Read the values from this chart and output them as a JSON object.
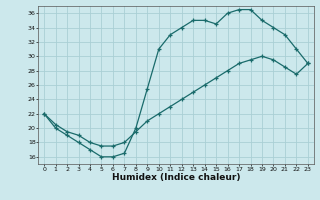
{
  "xlabel": "Humidex (Indice chaleur)",
  "background_color": "#cce8ec",
  "grid_color": "#aacfd5",
  "line_color": "#1a6b6b",
  "xlim": [
    -0.5,
    23.5
  ],
  "ylim": [
    15.0,
    37.0
  ],
  "yticks": [
    16,
    18,
    20,
    22,
    24,
    26,
    28,
    30,
    32,
    34,
    36
  ],
  "xticks": [
    0,
    1,
    2,
    3,
    4,
    5,
    6,
    7,
    8,
    9,
    10,
    11,
    12,
    13,
    14,
    15,
    16,
    17,
    18,
    19,
    20,
    21,
    22,
    23
  ],
  "curve1_x": [
    0,
    1,
    2,
    3,
    4,
    5,
    6,
    7,
    8,
    9,
    10,
    11,
    12,
    13,
    14,
    15,
    16,
    17,
    18,
    19,
    20,
    21,
    22,
    23
  ],
  "curve1_y": [
    22.0,
    20.0,
    19.0,
    18.0,
    17.0,
    16.0,
    16.0,
    16.5,
    20.0,
    25.5,
    31.0,
    33.0,
    34.0,
    35.0,
    35.0,
    34.5,
    36.0,
    36.5,
    36.5,
    35.0,
    34.0,
    33.0,
    31.0,
    29.0
  ],
  "curve2_x": [
    0,
    1,
    2,
    3,
    4,
    5,
    6,
    7,
    8,
    9,
    10,
    11,
    12,
    13,
    14,
    15,
    16,
    17,
    18,
    19,
    20,
    21,
    22,
    23
  ],
  "curve2_y": [
    22.0,
    20.5,
    19.5,
    19.0,
    18.0,
    17.5,
    17.5,
    18.0,
    19.5,
    21.0,
    22.0,
    23.0,
    24.0,
    25.0,
    26.0,
    27.0,
    28.0,
    29.0,
    29.5,
    30.0,
    29.5,
    28.5,
    27.5,
    29.0
  ]
}
